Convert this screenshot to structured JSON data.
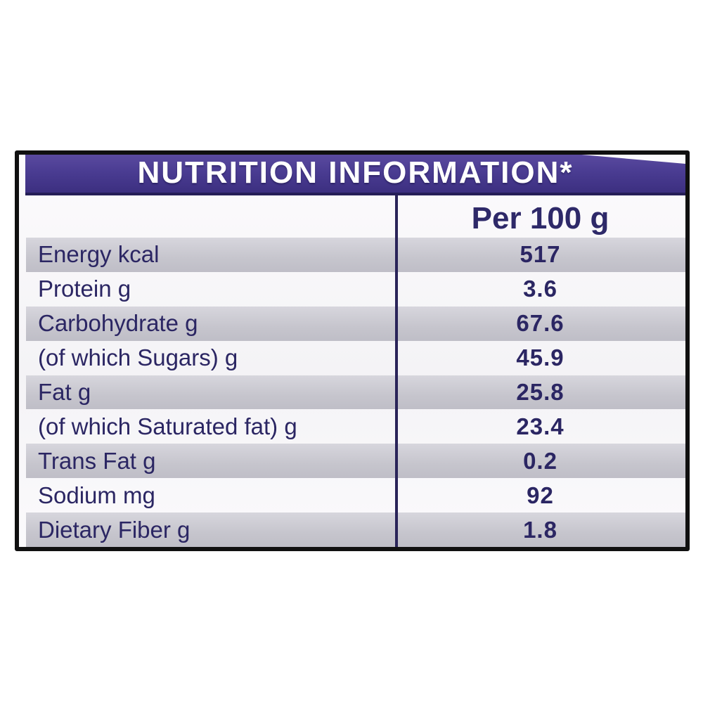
{
  "nutrition": {
    "title": "NUTRITION INFORMATION*",
    "column_header": "Per 100 g",
    "rows": [
      {
        "name": "Energy kcal",
        "value": "517"
      },
      {
        "name": "Protein g",
        "value": "3.6"
      },
      {
        "name": "Carbohydrate g",
        "value": "67.6"
      },
      {
        "name": "(of which Sugars) g",
        "value": "45.9"
      },
      {
        "name": "Fat g",
        "value": "25.8"
      },
      {
        "name": "(of which Saturated fat) g",
        "value": "23.4"
      },
      {
        "name": "Trans Fat g",
        "value": "0.2"
      },
      {
        "name": "Sodium mg",
        "value": "92"
      },
      {
        "name": "Dietary Fiber g",
        "value": "1.8"
      }
    ],
    "colors": {
      "band_purple": "#4a3c92",
      "band_border_dark": "#251e57",
      "text_navy": "#2b2663",
      "row_gray": "#c6c5cd",
      "frame_black": "#101010",
      "title_white": "#ffffff"
    }
  }
}
